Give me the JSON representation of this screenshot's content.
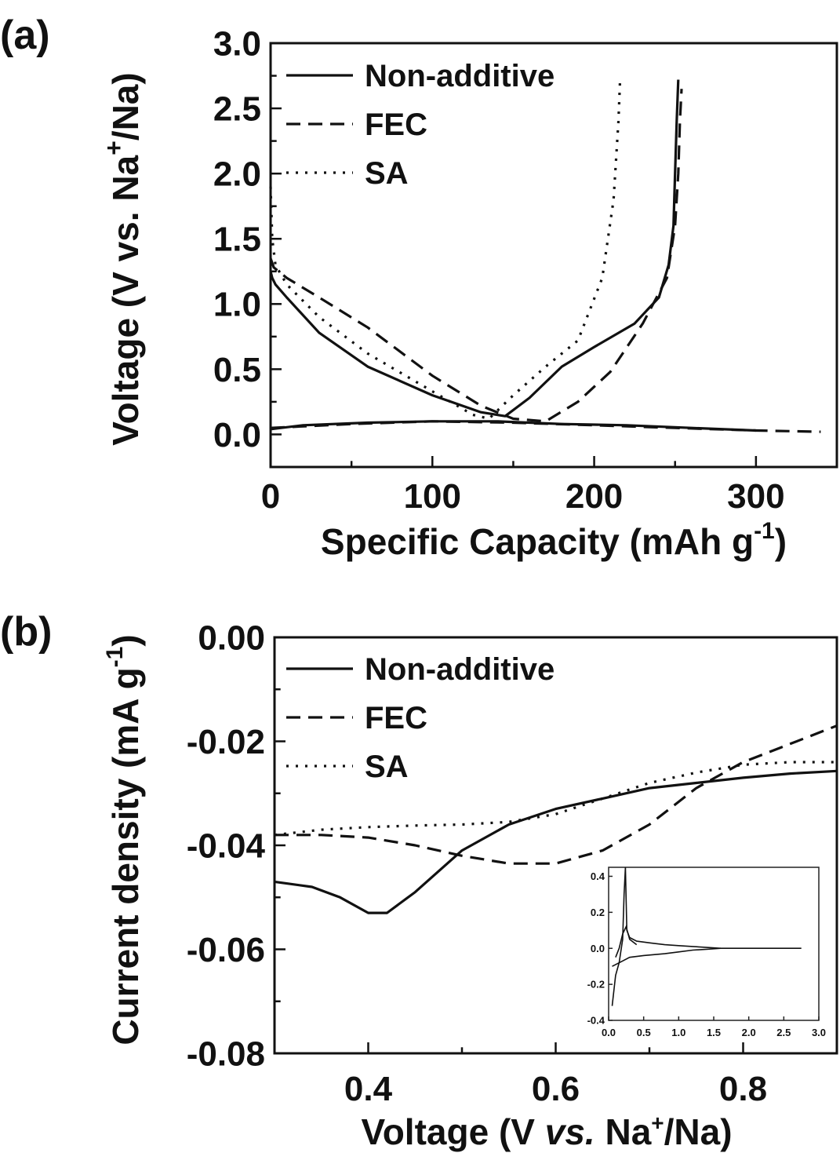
{
  "chart_data": [
    {
      "panel_label": "(a)",
      "type": "line",
      "xlabel_main": "Specific Capacity (mAh g",
      "xlabel_sup": "-1",
      "xlabel_close": ")",
      "ylabel_main": "Voltage (V vs. Na",
      "ylabel_sup": "+",
      "ylabel_end": "/Na)",
      "xlim": [
        0,
        350
      ],
      "ylim": [
        -0.25,
        3.0
      ],
      "xticks": [
        0,
        100,
        200,
        300
      ],
      "xtick_labels": [
        "0",
        "100",
        "200",
        "300"
      ],
      "yticks": [
        0.0,
        0.5,
        1.0,
        1.5,
        2.0,
        2.5,
        3.0
      ],
      "ytick_labels": [
        "0.0",
        "0.5",
        "1.0",
        "1.5",
        "2.0",
        "2.5",
        "3.0"
      ],
      "legend_position": "top-left",
      "series": [
        {
          "name": "Non-additive",
          "style": "solid",
          "x": [
            0,
            1,
            3,
            10,
            30,
            60,
            100,
            130,
            145,
            160,
            180,
            200,
            225,
            240,
            246,
            249,
            250,
            251,
            252
          ],
          "y": [
            1.25,
            1.2,
            1.15,
            1.05,
            0.78,
            0.52,
            0.3,
            0.17,
            0.14,
            0.28,
            0.52,
            0.67,
            0.85,
            1.05,
            1.3,
            1.6,
            2.0,
            2.4,
            2.72
          ]
        },
        {
          "name": "Non-additive",
          "style": "solid",
          "x": [
            0,
            20,
            60,
            100,
            140,
            180,
            220,
            260,
            300
          ],
          "y": [
            0.04,
            0.07,
            0.09,
            0.1,
            0.1,
            0.08,
            0.07,
            0.05,
            0.03
          ]
        },
        {
          "name": "FEC",
          "style": "dashed",
          "x": [
            0,
            2,
            10,
            30,
            60,
            100,
            130,
            150,
            170,
            190,
            210,
            230,
            245,
            250,
            252,
            253,
            254
          ],
          "y": [
            1.35,
            1.28,
            1.2,
            1.05,
            0.82,
            0.45,
            0.22,
            0.12,
            0.1,
            0.25,
            0.48,
            0.85,
            1.2,
            1.6,
            2.0,
            2.4,
            2.65
          ]
        },
        {
          "name": "FEC",
          "style": "dashed",
          "x": [
            0,
            50,
            100,
            150,
            200,
            250,
            300,
            340
          ],
          "y": [
            0.05,
            0.08,
            0.1,
            0.09,
            0.07,
            0.05,
            0.03,
            0.02
          ]
        },
        {
          "name": "SA",
          "style": "dotted",
          "x": [
            0,
            1,
            3,
            10,
            30,
            60,
            100,
            125,
            135,
            150,
            170,
            190,
            205,
            212,
            215,
            216
          ],
          "y": [
            1.9,
            1.5,
            1.3,
            1.15,
            0.9,
            0.62,
            0.33,
            0.15,
            0.12,
            0.3,
            0.52,
            0.72,
            1.2,
            1.8,
            2.4,
            2.72
          ]
        }
      ]
    },
    {
      "panel_label": "(b)",
      "type": "line",
      "xlabel_pre": "Voltage (V ",
      "xlabel_italic": "vs.",
      "xlabel_na": " Na",
      "xlabel_sup": "+",
      "xlabel_end": "/Na)",
      "ylabel_main": "Current density (mA g",
      "ylabel_sup": "-1",
      "ylabel_close": ")",
      "xlim": [
        0.3,
        0.9
      ],
      "ylim": [
        -0.08,
        0.0
      ],
      "xticks": [
        0.4,
        0.6,
        0.8
      ],
      "xtick_labels": [
        "0.4",
        "0.6",
        "0.8"
      ],
      "yticks": [
        -0.08,
        -0.06,
        -0.04,
        -0.02,
        0.0
      ],
      "ytick_labels": [
        "-0.08",
        "-0.06",
        "-0.04",
        "-0.02",
        "0.00"
      ],
      "legend_position": "top-left",
      "series": [
        {
          "name": "Non-additive",
          "style": "solid",
          "x": [
            0.3,
            0.34,
            0.37,
            0.4,
            0.42,
            0.45,
            0.5,
            0.55,
            0.6,
            0.65,
            0.7,
            0.75,
            0.8,
            0.85,
            0.9
          ],
          "y": [
            -0.047,
            -0.048,
            -0.05,
            -0.053,
            -0.053,
            -0.049,
            -0.041,
            -0.036,
            -0.033,
            -0.031,
            -0.029,
            -0.028,
            -0.027,
            -0.0262,
            -0.0257
          ]
        },
        {
          "name": "FEC",
          "style": "dashed",
          "x": [
            0.3,
            0.35,
            0.4,
            0.45,
            0.5,
            0.55,
            0.6,
            0.65,
            0.7,
            0.75,
            0.8,
            0.85,
            0.9
          ],
          "y": [
            -0.038,
            -0.038,
            -0.0385,
            -0.04,
            -0.042,
            -0.0435,
            -0.0435,
            -0.041,
            -0.036,
            -0.029,
            -0.024,
            -0.0205,
            -0.017
          ]
        },
        {
          "name": "SA",
          "style": "dotted",
          "x": [
            0.3,
            0.35,
            0.4,
            0.45,
            0.5,
            0.55,
            0.6,
            0.65,
            0.7,
            0.75,
            0.8,
            0.85,
            0.9
          ],
          "y": [
            -0.038,
            -0.037,
            -0.0365,
            -0.0362,
            -0.036,
            -0.0355,
            -0.034,
            -0.031,
            -0.028,
            -0.026,
            -0.0245,
            -0.024,
            -0.024
          ]
        }
      ],
      "inset": {
        "type": "line",
        "xlim": [
          0,
          3.0
        ],
        "ylim": [
          -0.4,
          0.45
        ],
        "xticks": [
          0.0,
          0.5,
          1.0,
          1.5,
          2.0,
          2.5,
          3.0
        ],
        "xtick_labels": [
          "0.0",
          "0.5",
          "1.0",
          "1.5",
          "2.0",
          "2.5",
          "3.0"
        ],
        "yticks": [
          -0.4,
          -0.2,
          0.0,
          0.2,
          0.4
        ],
        "ytick_labels": [
          "-0.4",
          "-0.2",
          "0.0",
          "0.2",
          "0.4"
        ],
        "series": [
          {
            "x": [
              0.05,
              0.1,
              0.15,
              0.2,
              0.22,
              0.24,
              0.26,
              0.3,
              0.4,
              0.6,
              0.8,
              1.0,
              1.2,
              1.4,
              1.6,
              2.0,
              2.5,
              2.75
            ],
            "y": [
              -0.32,
              -0.15,
              -0.08,
              0.05,
              0.3,
              0.45,
              0.1,
              0.06,
              0.04,
              0.03,
              0.02,
              0.015,
              0.01,
              0.005,
              0.0,
              0.0,
              0.0,
              0.0
            ]
          },
          {
            "x": [
              0.05,
              0.1,
              0.2,
              0.3,
              0.5,
              0.8,
              1.0,
              1.2,
              1.4,
              1.6
            ],
            "y": [
              -0.1,
              -0.09,
              -0.07,
              -0.05,
              -0.04,
              -0.03,
              -0.02,
              -0.01,
              -0.005,
              0.0
            ]
          },
          {
            "x": [
              0.1,
              0.15,
              0.2,
              0.25,
              0.3,
              0.4
            ],
            "y": [
              -0.05,
              0.0,
              0.08,
              0.12,
              0.05,
              0.02
            ]
          }
        ]
      }
    }
  ]
}
